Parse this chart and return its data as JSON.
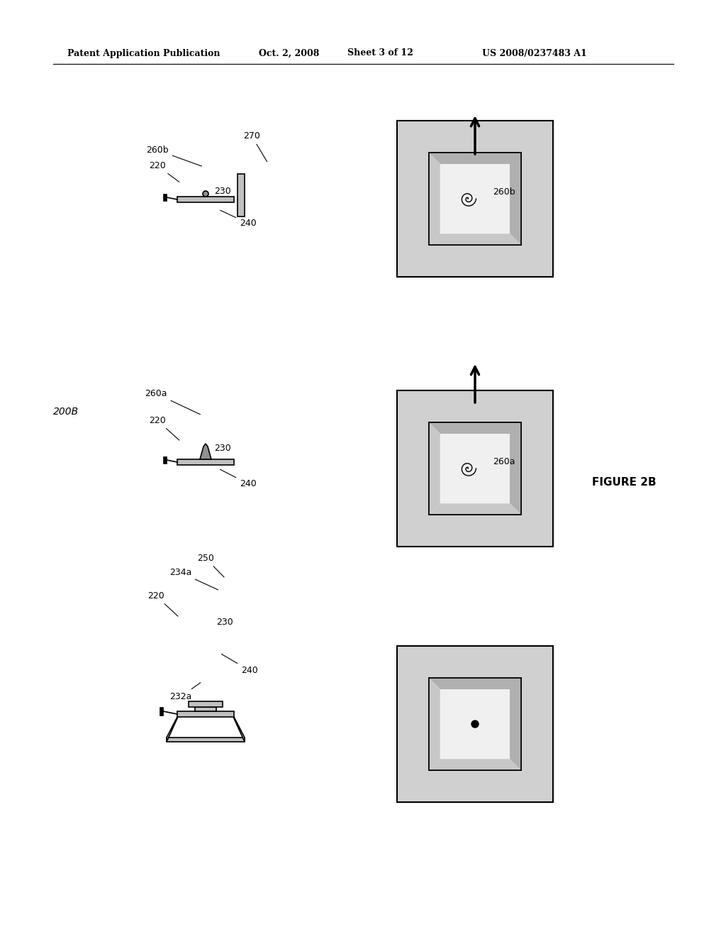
{
  "bg_color": "#ffffff",
  "header_text": "Patent Application Publication",
  "header_date": "Oct. 2, 2008",
  "header_sheet": "Sheet 3 of 12",
  "header_patent": "US 2008/0237483 A1",
  "figure_label": "FIGURE 2B",
  "diagram_label": "200B",
  "row_labels": {
    "top": {
      "schematic_label": "270",
      "side_labels": [
        "220",
        "230",
        "240",
        "260b"
      ]
    },
    "mid": {
      "schematic_label": "",
      "side_labels": [
        "260a",
        "220",
        "230",
        "240"
      ]
    },
    "bot": {
      "schematic_label": "",
      "side_labels": [
        "250",
        "234a",
        "220",
        "230",
        "240",
        "232a"
      ]
    }
  }
}
